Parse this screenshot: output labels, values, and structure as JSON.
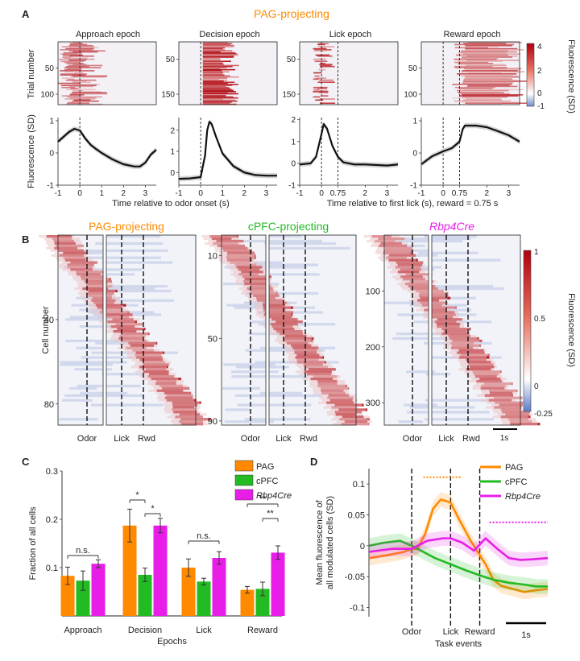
{
  "panel_labels": {
    "A": "A",
    "B": "B",
    "C": "C",
    "D": "D"
  },
  "panel_a": {
    "title": "PAG-projecting",
    "title_color": "#ff8a00",
    "epochs": [
      "Approach epoch",
      "Decision epoch",
      "Lick epoch",
      "Reward epoch"
    ],
    "heatmap_ylabel": "Trial number",
    "trace_ylabel": "Fluorescence (SD)",
    "colorbar_label": "Fluorescence (SD)",
    "colorbar_ticks": [
      "4",
      "2",
      "0",
      "-1"
    ],
    "xlabel_odor": "Time relative to odor onset (s)",
    "xlabel_lick": "Time relative to first lick (s), reward = 0.75 s"
  },
  "panel_b": {
    "groups": [
      {
        "name": "PAG-projecting",
        "color": "#ff8a00"
      },
      {
        "name": "cPFC-projecting",
        "color": "#22bb22"
      },
      {
        "name": "Rbp4Cre",
        "color": "#e81ee8"
      }
    ],
    "ylabel": "Cell number",
    "event_labels": [
      "Odor",
      "Lick",
      "Rwd"
    ],
    "scalebar": "1s",
    "colorbar_label": "Fluorescence (SD)",
    "colorbar_ticks": [
      "1",
      "0.5",
      "0",
      "-0.25"
    ]
  },
  "chart_data": [
    {
      "id": "A-heatmap-approach",
      "type": "heatmap",
      "title": "Approach epoch",
      "xlim": [
        -1,
        3.5
      ],
      "yticks": [
        50,
        100
      ],
      "rows": 120,
      "values_desc": "trial x time fluorescence (SD)"
    },
    {
      "id": "A-heatmap-decision",
      "type": "heatmap",
      "title": "Decision epoch",
      "xlim": [
        -1,
        3.5
      ],
      "yticks": [
        50,
        150
      ],
      "rows": 180
    },
    {
      "id": "A-heatmap-lick",
      "type": "heatmap",
      "title": "Lick epoch",
      "xlim": [
        -1,
        3.5
      ],
      "yticks": [
        50,
        150
      ],
      "rows": 180
    },
    {
      "id": "A-heatmap-reward",
      "type": "heatmap",
      "title": "Reward epoch",
      "xlim": [
        -1,
        3.5
      ],
      "yticks": [
        50,
        100
      ],
      "rows": 120
    },
    {
      "id": "A-trace-approach",
      "type": "line",
      "xlim": [
        -1,
        3.5
      ],
      "ylim": [
        -1,
        1.1
      ],
      "yticks": [
        -1,
        0,
        1
      ],
      "xticks": [
        -1,
        0,
        1,
        2,
        3
      ],
      "xticklabels": [
        "-1",
        "0",
        "1",
        "2",
        "3"
      ],
      "x": [
        -1,
        -0.75,
        -0.5,
        -0.25,
        0,
        0.25,
        0.5,
        0.75,
        1,
        1.5,
        2,
        2.5,
        2.75,
        3,
        3.25,
        3.5
      ],
      "y": [
        0.35,
        0.5,
        0.65,
        0.75,
        0.7,
        0.45,
        0.25,
        0.12,
        0,
        -0.2,
        -0.35,
        -0.42,
        -0.42,
        -0.3,
        -0.05,
        0.1
      ]
    },
    {
      "id": "A-trace-decision",
      "type": "line",
      "xlim": [
        -1,
        3.5
      ],
      "ylim": [
        -0.6,
        2.6
      ],
      "yticks": [
        0,
        1,
        2
      ],
      "xticks": [
        -1,
        0,
        1,
        2,
        3
      ],
      "xticklabels": [
        "-1",
        "0",
        "1",
        "2",
        "3"
      ],
      "x": [
        -1,
        -0.5,
        0,
        0.2,
        0.3,
        0.4,
        0.5,
        0.7,
        1,
        1.5,
        2,
        2.5,
        3,
        3.5
      ],
      "y": [
        -0.3,
        -0.28,
        -0.22,
        0.8,
        2.0,
        2.4,
        2.3,
        1.7,
        0.9,
        0.3,
        0,
        -0.12,
        -0.15,
        -0.15
      ]
    },
    {
      "id": "A-trace-lick",
      "type": "line",
      "xlim": [
        -1,
        3.5
      ],
      "ylim": [
        -1,
        2.1
      ],
      "yticks": [
        -1,
        0,
        1,
        2
      ],
      "xticks": [
        -1,
        0,
        0.75,
        2,
        3
      ],
      "xticklabels": [
        "-1",
        "0",
        "0.75",
        "2",
        "3"
      ],
      "x": [
        -1,
        -0.5,
        -0.25,
        0,
        0.1,
        0.25,
        0.5,
        0.75,
        1,
        1.5,
        2,
        3,
        3.5
      ],
      "y": [
        -0.05,
        0,
        0.3,
        1.35,
        1.8,
        1.6,
        0.8,
        0.3,
        0.05,
        -0.05,
        -0.05,
        -0.1,
        -0.05
      ]
    },
    {
      "id": "A-trace-reward",
      "type": "line",
      "xlim": [
        -1,
        3.5
      ],
      "ylim": [
        -1,
        1.1
      ],
      "yticks": [
        -1,
        0,
        1
      ],
      "xticks": [
        -1,
        0,
        0.75,
        2,
        3
      ],
      "xticklabels": [
        "-1",
        "0",
        "0.75",
        "2",
        "3"
      ],
      "x": [
        -1,
        -0.5,
        0,
        0.4,
        0.75,
        0.9,
        1,
        1.5,
        2,
        2.5,
        3,
        3.5
      ],
      "y": [
        -0.35,
        -0.1,
        0.05,
        0.15,
        0.35,
        0.75,
        0.85,
        0.85,
        0.8,
        0.68,
        0.55,
        0.35
      ]
    },
    {
      "id": "B-heatmap-PAG",
      "type": "heatmap",
      "title": "PAG-projecting",
      "rows": 90,
      "yticks": [
        40,
        80
      ],
      "values_desc": "cells sorted by peak time"
    },
    {
      "id": "B-heatmap-cPFC",
      "type": "heatmap",
      "title": "cPFC-projecting",
      "rows": 92,
      "yticks": [
        10,
        50,
        90
      ]
    },
    {
      "id": "B-heatmap-Rbp4Cre",
      "type": "heatmap",
      "title": "Rbp4Cre",
      "rows": 340,
      "yticks": [
        100,
        200,
        300
      ]
    },
    {
      "id": "C",
      "type": "bar",
      "categories": [
        "Approach",
        "Decision",
        "Lick",
        "Reward"
      ],
      "series": [
        {
          "name": "PAG",
          "color": "#ff8a00",
          "values": [
            0.083,
            0.187,
            0.1,
            0.054
          ],
          "err": [
            0.018,
            0.034,
            0.018,
            0.007
          ]
        },
        {
          "name": "cPFC",
          "color": "#22bb22",
          "values": [
            0.073,
            0.085,
            0.071,
            0.056
          ],
          "err": [
            0.02,
            0.014,
            0.007,
            0.014
          ]
        },
        {
          "name": "Rbp4Cre",
          "color": "#e81ee8",
          "values": [
            0.108,
            0.187,
            0.12,
            0.131
          ],
          "err": [
            0.008,
            0.015,
            0.013,
            0.014
          ]
        }
      ],
      "ylim": [
        0,
        0.3
      ],
      "yticks": [
        0.1,
        0.2,
        0.3
      ],
      "ytick_labels": [
        "0.1",
        "0.2",
        "0.3"
      ],
      "ylabel": "Fraction of all cells",
      "xlabel": "Epochs",
      "annotations": [
        {
          "category": "Approach",
          "text": "n.s."
        },
        {
          "category": "Decision",
          "text": "*",
          "pair": "PAG-cPFC"
        },
        {
          "category": "Decision",
          "text": "*",
          "pair": "cPFC-Rbp4Cre"
        },
        {
          "category": "Lick",
          "text": "n.s."
        },
        {
          "category": "Reward",
          "text": "**",
          "pair": "PAG-Rbp4Cre"
        },
        {
          "category": "Reward",
          "text": "**",
          "pair": "cPFC-Rbp4Cre"
        }
      ]
    },
    {
      "id": "D",
      "type": "line",
      "title": "",
      "ylabel": "Mean fluorescence of\nall modulated cells (SD)",
      "xlabel": "Task events",
      "ylim": [
        -0.115,
        0.125
      ],
      "yticks": [
        -0.1,
        -0.05,
        0,
        0.05,
        0.1
      ],
      "ytick_labels": [
        "-0.1",
        "-0.05",
        "0",
        "0.05",
        "0.1"
      ],
      "events": [
        "Odor",
        "Lick",
        "Reward"
      ],
      "event_t": [
        0,
        1,
        1.75
      ],
      "xlim": [
        -1.1,
        3.5
      ],
      "scalebar": "1s",
      "series": [
        {
          "name": "PAG",
          "color": "#ff8a00",
          "t": [
            -1.1,
            -0.6,
            -0.2,
            0,
            0.15,
            0.35,
            0.55,
            0.75,
            0.9,
            1.0,
            1.2,
            1.5,
            1.75,
            1.9,
            2.1,
            2.3,
            2.6,
            2.9,
            3.2,
            3.5
          ],
          "y": [
            -0.02,
            -0.015,
            -0.01,
            -0.005,
            -0.005,
            0.02,
            0.06,
            0.075,
            0.072,
            0.07,
            0.045,
            0.01,
            -0.015,
            -0.03,
            -0.055,
            -0.065,
            -0.07,
            -0.075,
            -0.072,
            -0.07
          ]
        },
        {
          "name": "cPFC",
          "color": "#22bb22",
          "t": [
            -1.1,
            -0.7,
            -0.3,
            0,
            0.3,
            0.6,
            1.0,
            1.4,
            1.75,
            2.1,
            2.5,
            2.9,
            3.2,
            3.5
          ],
          "y": [
            0.0,
            0.005,
            0.008,
            0.0,
            -0.01,
            -0.02,
            -0.03,
            -0.04,
            -0.048,
            -0.055,
            -0.06,
            -0.063,
            -0.066,
            -0.066
          ]
        },
        {
          "name": "Rbp4Cre",
          "color": "#e81ee8",
          "t": [
            -1.1,
            -0.5,
            0,
            0.4,
            0.8,
            1.0,
            1.3,
            1.6,
            1.9,
            2.2,
            2.5,
            2.8,
            3.1,
            3.5
          ],
          "y": [
            -0.01,
            -0.005,
            -0.005,
            0.008,
            0.012,
            0.012,
            0.005,
            -0.008,
            0.012,
            -0.005,
            -0.02,
            -0.023,
            -0.022,
            -0.02
          ]
        }
      ],
      "sig_bars": [
        {
          "color": "#ff8a00",
          "t": [
            0.3,
            1.3
          ],
          "y": 0.111
        },
        {
          "color": "#e81ee8",
          "t": [
            2.0,
            3.5
          ],
          "y": 0.038
        }
      ]
    }
  ]
}
